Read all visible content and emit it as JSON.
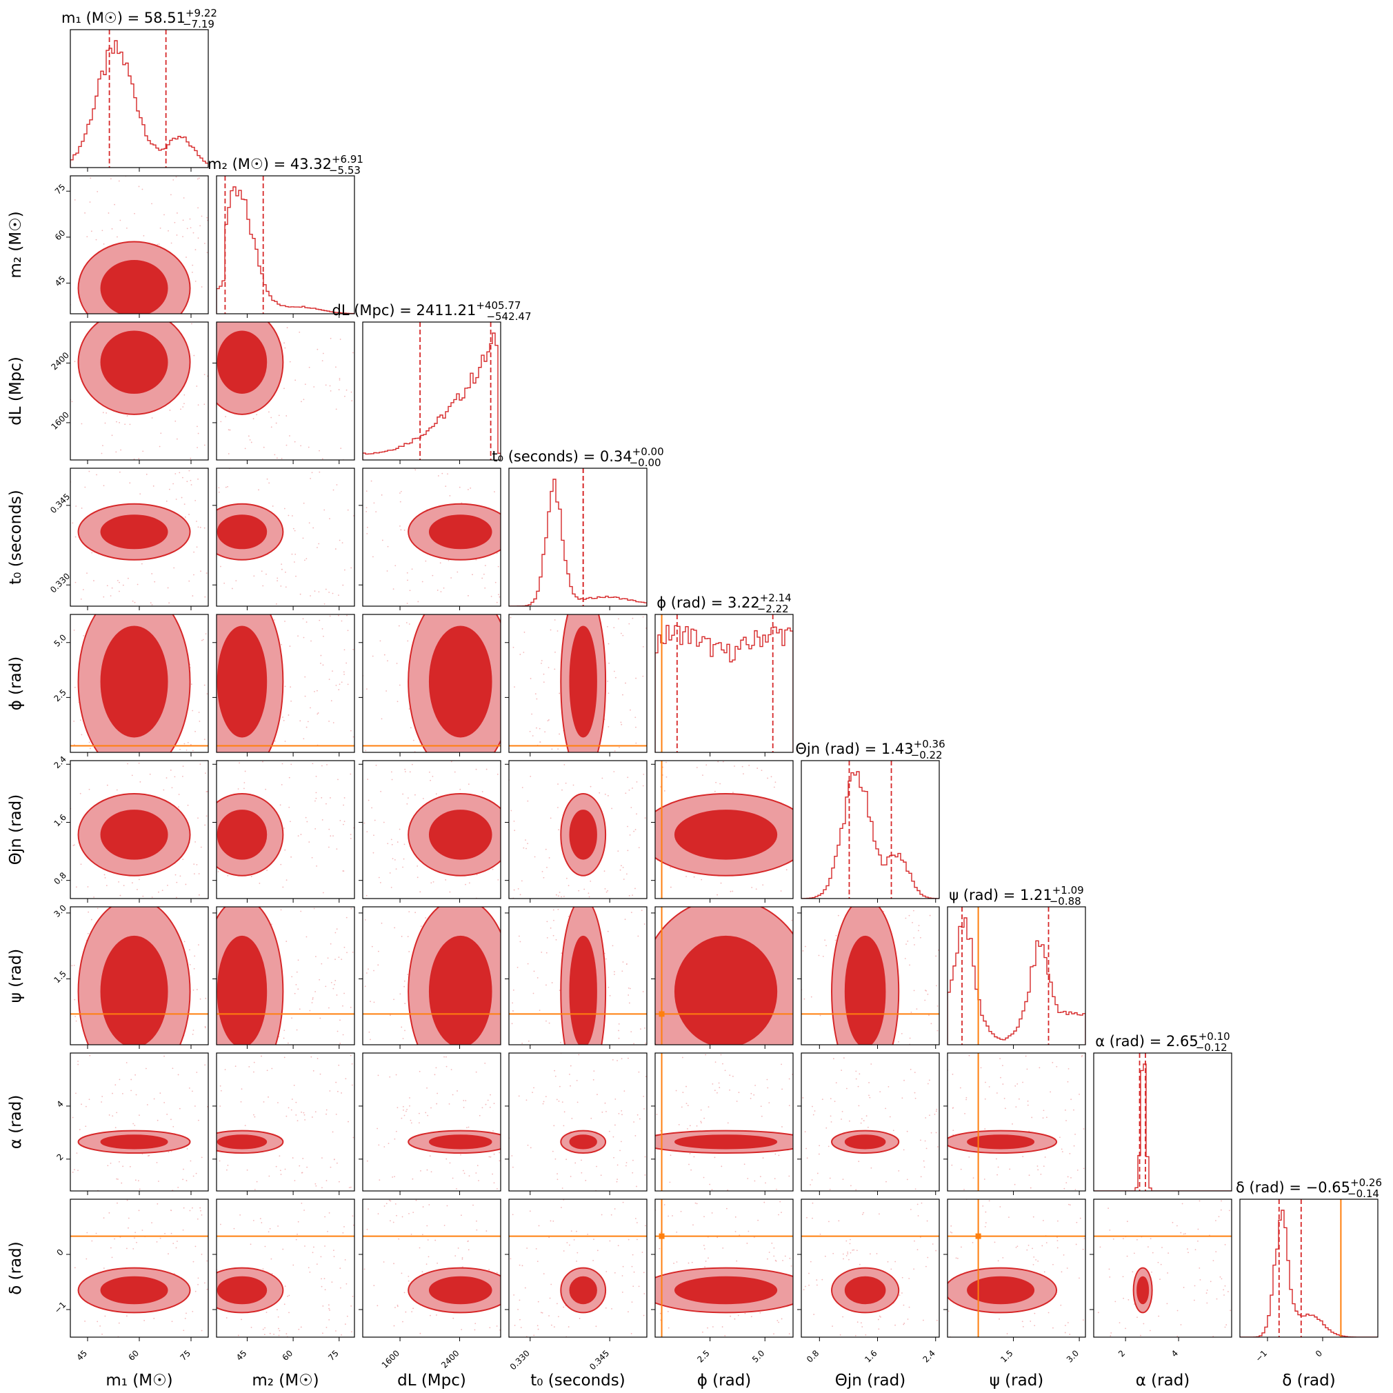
{
  "colors": {
    "posterior": "#d62728",
    "truth": "#ff7f0e",
    "light_fill": "#ec9da0",
    "dark_fill": "#d62728"
  },
  "chart_data": {
    "type": "corner",
    "parameters": [
      {
        "key": "m1",
        "label": "m₁ (M☉)",
        "title_main": "m₁ (M☉) = 58.51",
        "title_plus": "+9.22",
        "title_minus": "−7.19",
        "median": 58.51,
        "plus": 9.22,
        "minus": 7.19,
        "range": [
          40,
          80
        ],
        "ticks": [
          45,
          60,
          75
        ],
        "tick_labels": [
          "45",
          "60",
          "75"
        ]
      },
      {
        "key": "m2",
        "label": "m₂ (M☉)",
        "title_main": "m₂ (M☉) = 43.32",
        "title_plus": "+6.91",
        "title_minus": "−5.53",
        "median": 43.32,
        "plus": 6.91,
        "minus": 5.53,
        "range": [
          35,
          80
        ],
        "ticks": [
          45,
          60,
          75
        ],
        "tick_labels": [
          "45",
          "60",
          "75"
        ]
      },
      {
        "key": "dl",
        "label": "dL (Mpc)",
        "title_main": "dL (Mpc) = 2411.21",
        "title_plus": "+405.77",
        "title_minus": "−542.47",
        "median": 2411.21,
        "plus": 405.77,
        "minus": 542.47,
        "range": [
          1100,
          2950
        ],
        "ticks": [
          1600,
          2400
        ],
        "tick_labels": [
          "1600",
          "2400"
        ]
      },
      {
        "key": "t0",
        "label": "t₀ (seconds)",
        "title_main": "t₀ (seconds) = 0.34",
        "title_plus": "+0.00",
        "title_minus": "−0.00",
        "median": 0.34,
        "plus": 0.0,
        "minus": 0.0,
        "range": [
          0.326,
          0.352
        ],
        "ticks": [
          0.33,
          0.345
        ],
        "tick_labels": [
          "0.330",
          "0.345"
        ]
      },
      {
        "key": "phi",
        "label": "ϕ (rad)",
        "title_main": "ϕ (rad) = 3.22",
        "title_plus": "+2.14",
        "title_minus": "−2.22",
        "median": 3.22,
        "plus": 2.14,
        "minus": 2.22,
        "range": [
          0,
          6.28
        ],
        "ticks": [
          2.5,
          5.0
        ],
        "tick_labels": [
          "2.5",
          "5.0"
        ],
        "truth": 0.3
      },
      {
        "key": "thetajn",
        "label": "Θjn (rad)",
        "title_main": "Θjn (rad) = 1.43",
        "title_plus": "+0.36",
        "title_minus": "−0.22",
        "median": 1.43,
        "plus": 0.36,
        "minus": 0.22,
        "range": [
          0.55,
          2.45
        ],
        "ticks": [
          0.8,
          1.6,
          2.4
        ],
        "tick_labels": [
          "0.8",
          "1.6",
          "2.4"
        ]
      },
      {
        "key": "psi",
        "label": "ψ (rad)",
        "title_main": "ψ (rad) = 1.21",
        "title_plus": "+1.09",
        "title_minus": "−0.88",
        "median": 1.21,
        "plus": 1.09,
        "minus": 0.88,
        "range": [
          0,
          3.14
        ],
        "ticks": [
          1.5,
          3.0
        ],
        "tick_labels": [
          "1.5",
          "3.0"
        ],
        "truth": 0.7
      },
      {
        "key": "alpha",
        "label": "α (rad)",
        "title_main": "α (rad) = 2.65",
        "title_plus": "+0.10",
        "title_minus": "−0.12",
        "median": 2.65,
        "plus": 0.1,
        "minus": 0.12,
        "range": [
          0.8,
          6.0
        ],
        "ticks": [
          2,
          4
        ],
        "tick_labels": [
          "2",
          "4"
        ]
      },
      {
        "key": "delta",
        "label": "δ (rad)",
        "title_main": "δ (rad) = −0.65",
        "title_plus": "+0.26",
        "title_minus": "−0.14",
        "median": -0.65,
        "plus": 0.26,
        "minus": 0.14,
        "range": [
          -1.5,
          1.0
        ],
        "ticks": [
          -1,
          0
        ],
        "tick_labels": [
          "−1",
          "0"
        ],
        "truth": 0.33
      }
    ]
  }
}
